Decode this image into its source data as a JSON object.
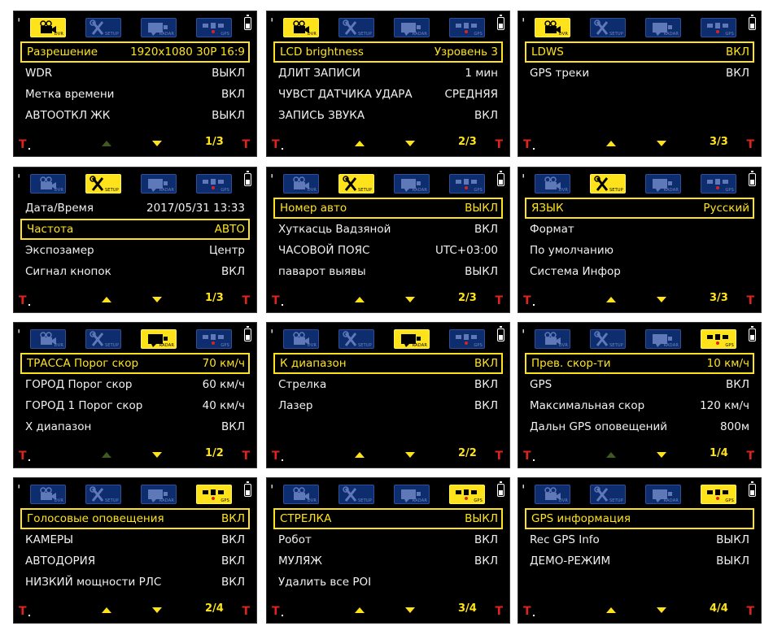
{
  "screens": [
    {
      "active_tab": 0,
      "items": [
        {
          "label": "Разрешение",
          "value": "1920x1080 30P 16:9",
          "selected": true
        },
        {
          "label": "WDR",
          "value": "ВЫКЛ"
        },
        {
          "label": "Метка времени",
          "value": "ВКЛ"
        },
        {
          "label": "АВТООТКЛ ЖК",
          "value": "ВЫКЛ"
        }
      ],
      "page": "1/3",
      "up_dim": true
    },
    {
      "active_tab": 0,
      "items": [
        {
          "label": "LCD brightness",
          "value": "Узровень 3",
          "selected": true
        },
        {
          "label": "ДЛИТ ЗАПИСИ",
          "value": "1 мин"
        },
        {
          "label": "ЧУВСТ ДАТЧИКА УДАРА",
          "value": "СРЕДНЯЯ"
        },
        {
          "label": "ЗАПИСЬ ЗВУКА",
          "value": "ВКЛ"
        }
      ],
      "page": "2/3",
      "up_dim": false
    },
    {
      "active_tab": 0,
      "items": [
        {
          "label": "LDWS",
          "value": "ВКЛ",
          "selected": true
        },
        {
          "label": "GPS треки",
          "value": "ВКЛ"
        }
      ],
      "page": "3/3",
      "up_dim": false
    },
    {
      "active_tab": 1,
      "items": [
        {
          "label": "Дата/Время",
          "value": "2017/05/31 13:33"
        },
        {
          "label": "Частота",
          "value": "АВТО",
          "selected": true
        },
        {
          "label": "Экспозамер",
          "value": "Центр"
        },
        {
          "label": "Сигнал кнопок",
          "value": "ВКЛ"
        }
      ],
      "page": "1/3",
      "up_dim": false
    },
    {
      "active_tab": 1,
      "items": [
        {
          "label": "Номер авто",
          "value": "ВЫКЛ",
          "selected": true
        },
        {
          "label": "Хуткасць Вадзяной",
          "value": "ВКЛ"
        },
        {
          "label": "ЧАСОВОЙ ПОЯС",
          "value": "UTC+03:00"
        },
        {
          "label": "паварот выявы",
          "value": "ВЫКЛ"
        }
      ],
      "page": "2/3",
      "up_dim": false
    },
    {
      "active_tab": 1,
      "items": [
        {
          "label": "ЯЗЫК",
          "value": "Русский",
          "selected": true
        },
        {
          "label": "Формат",
          "value": ""
        },
        {
          "label": "По умолчанию",
          "value": ""
        },
        {
          "label": "Система Инфор",
          "value": ""
        }
      ],
      "page": "3/3",
      "up_dim": false
    },
    {
      "active_tab": 2,
      "items": [
        {
          "label": "ТРАССА Порог скор",
          "value": "70 км/ч",
          "selected": true
        },
        {
          "label": "ГОРОД Порог скор",
          "value": "60 км/ч"
        },
        {
          "label": "ГОРОД 1 Порог скор",
          "value": "40 км/ч"
        },
        {
          "label": "X диапазон",
          "value": "ВКЛ"
        }
      ],
      "page": "1/2",
      "up_dim": true
    },
    {
      "active_tab": 2,
      "items": [
        {
          "label": "К диапазон",
          "value": "ВКЛ",
          "selected": true
        },
        {
          "label": "Стрелка",
          "value": "ВКЛ"
        },
        {
          "label": "Лазер",
          "value": "ВКЛ"
        }
      ],
      "page": "2/2",
      "up_dim": false
    },
    {
      "active_tab": 3,
      "items": [
        {
          "label": "Прев. скор-ти",
          "value": "10 км/ч",
          "selected": true
        },
        {
          "label": "GPS",
          "value": "ВКЛ"
        },
        {
          "label": "Максимальная скор",
          "value": "120 км/ч"
        },
        {
          "label": "Дальн GPS оповещений",
          "value": "800м"
        }
      ],
      "page": "1/4",
      "up_dim": true
    },
    {
      "active_tab": 3,
      "items": [
        {
          "label": "Голосовые оповещения",
          "value": "ВКЛ",
          "selected": true
        },
        {
          "label": "КАМЕРЫ",
          "value": "ВКЛ"
        },
        {
          "label": "АВТОДОРИЯ",
          "value": "ВКЛ"
        },
        {
          "label": "НИЗКИЙ мощности РЛС",
          "value": "ВКЛ"
        }
      ],
      "page": "2/4",
      "up_dim": false
    },
    {
      "active_tab": 3,
      "items": [
        {
          "label": "СТРЕЛКА",
          "value": "ВЫКЛ",
          "selected": true
        },
        {
          "label": "Робот",
          "value": "ВКЛ"
        },
        {
          "label": "МУЛЯЖ",
          "value": "ВКЛ"
        },
        {
          "label": "Удалить все POI",
          "value": ""
        }
      ],
      "page": "3/4",
      "up_dim": false
    },
    {
      "active_tab": 3,
      "items": [
        {
          "label": "GPS информация",
          "value": "",
          "selected": true
        },
        {
          "label": "Rec GPS Info",
          "value": "ВЫКЛ"
        },
        {
          "label": "ДЕМО-РЕЖИМ",
          "value": "ВЫКЛ"
        }
      ],
      "page": "4/4",
      "up_dim": false
    }
  ],
  "tabs": [
    {
      "icon": "camera-icon",
      "label": "DVR"
    },
    {
      "icon": "tools-icon",
      "label": "SETUP"
    },
    {
      "icon": "radar-icon",
      "label": "RADAR"
    },
    {
      "icon": "satellite-icon",
      "label": "GPS"
    }
  ],
  "colors": {
    "accent": "#ffe31a",
    "tab_bg": "#0e2d6e",
    "mark": "#e0231b"
  }
}
